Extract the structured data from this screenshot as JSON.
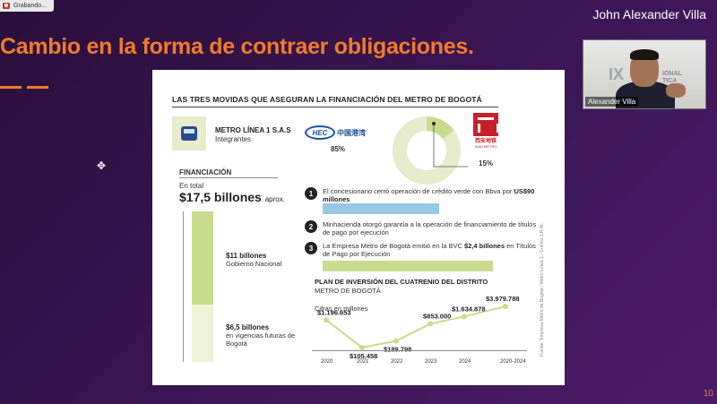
{
  "recording": {
    "label": "Grabando..."
  },
  "presenter": {
    "name": "John Alexander Villa"
  },
  "slide": {
    "title": "Cambio en la forma de contraer obligaciones.",
    "page_number": "10"
  },
  "webcam": {
    "name_tag": "Alexander Villa"
  },
  "infographic": {
    "header": "LAS TRES MOVIDAS QUE ASEGURAN LA FINANCIACIÓN DEL METRO DE BOGOTÁ",
    "metro": {
      "title": "METRO LÍNEA 1 S.A.S",
      "subtitle": "Integrantes"
    },
    "partners": [
      {
        "logo_text": "HEC",
        "cn_text": "中国港湾",
        "share": "85%"
      },
      {
        "cn_text": "西安地铁",
        "en_text": "XIAN METRO",
        "share": "15%"
      }
    ],
    "ownership_share": {
      "hec": 85,
      "xian": 15
    },
    "financing": {
      "label": "FINANCIACIÓN",
      "total_label": "En total",
      "total_amount": "$17,5 billones",
      "total_suffix": "aprox.",
      "segments": [
        {
          "amount": "$11 billones",
          "description": "Gobierno Nacional"
        },
        {
          "amount": "$6,5 billones",
          "description": "en vigencias futuras de Bogotá"
        }
      ]
    },
    "steps": [
      {
        "number": "1",
        "text": "El concesionario cerró operación de crédito verde con Bbva por ",
        "highlight": "US$90 millones"
      },
      {
        "number": "2",
        "text": "Minhacienda otorgó garantía a la operación de financiamiento de títulos de pago por ejecución"
      },
      {
        "number": "3",
        "text": "La Empresa Metro de Bogotá emitió en la BVC ",
        "highlight": "$2,4 billones",
        "text_after": " en Títulos de Pago por Ejecución"
      }
    ],
    "plan": {
      "title": "PLAN DE INVERSIÓN DEL CUATRENIO DEL DISTRITO",
      "subtitle": "METRO DE BOGOTÁ",
      "units": "Cifras en millones"
    },
    "source_note": "Fuente: Empresa Metro de Bogotá / Metro Línea 1 / Gráfico: LR-AL"
  },
  "chart_data": {
    "type": "line",
    "categories": [
      "2020",
      "2021",
      "2022",
      "2023",
      "2024",
      "2020-2024"
    ],
    "values": [
      1196653,
      105458,
      189798,
      853000,
      1634878,
      3979788
    ],
    "value_labels": [
      "$1.196.653",
      "$105.458",
      "$189.798",
      "$853.000",
      "$1.634.878",
      "$3.979.788"
    ],
    "title": "PLAN DE INVERSIÓN DEL CUATRENIO DEL DISTRITO",
    "xlabel": "",
    "ylabel": "",
    "colors": {
      "line": "#c9dc8e",
      "point": "#c9dc8e"
    }
  },
  "colors": {
    "accent": "#f07b2a",
    "green": "#c9dc8e",
    "blue": "#99c8e5"
  }
}
